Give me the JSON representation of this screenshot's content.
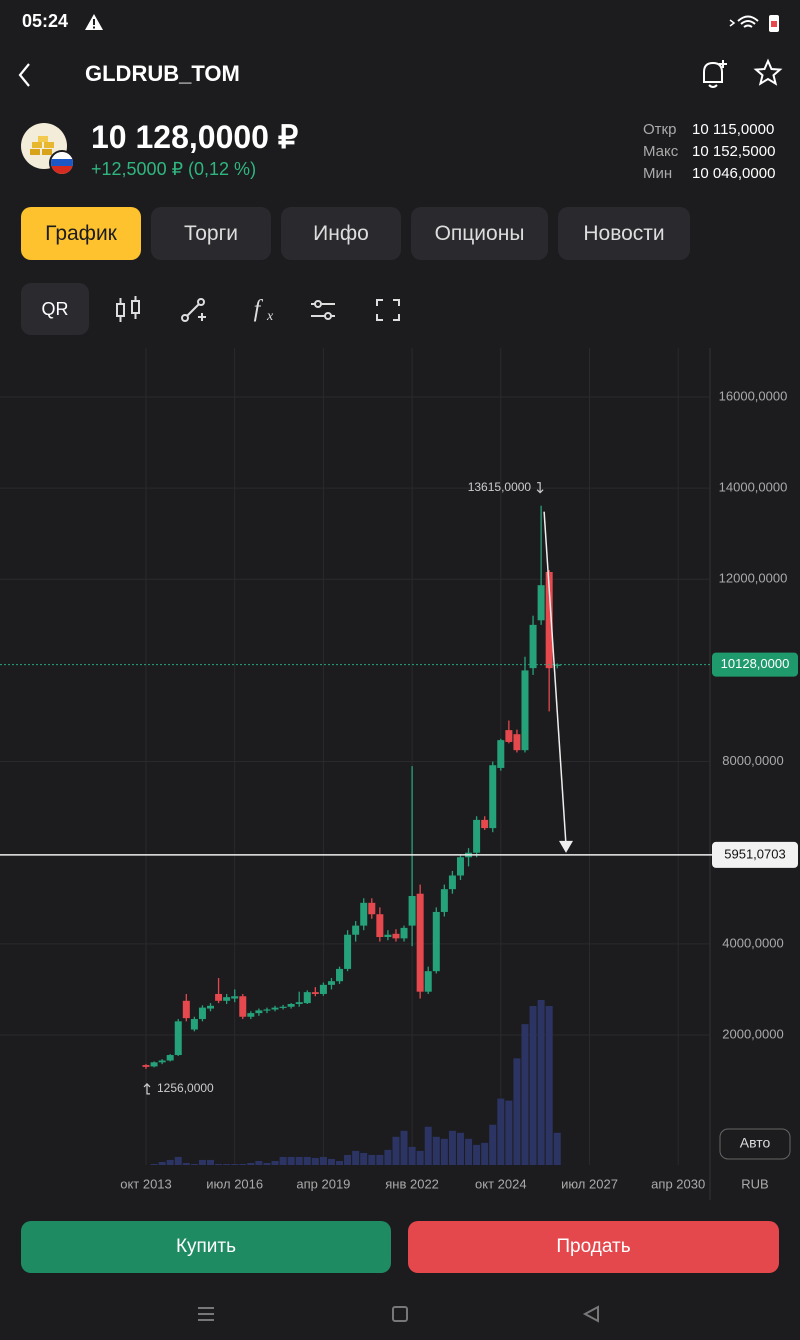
{
  "status_bar": {
    "time": "05:24"
  },
  "header": {
    "title": "GLDRUB_TOM"
  },
  "quote": {
    "price": "10 128,0000 ₽",
    "change": "+12,5000 ₽ (0,12 %)",
    "stats": [
      {
        "label": "Откр",
        "value": "10 115,0000"
      },
      {
        "label": "Макс",
        "value": "10 152,5000"
      },
      {
        "label": "Мин",
        "value": "10 046,0000"
      }
    ]
  },
  "tabs": [
    "График",
    "Торги",
    "Инфо",
    "Опционы",
    "Новости"
  ],
  "active_tab": 0,
  "toolbar": {
    "qr": "QR"
  },
  "chart": {
    "type": "candlestick",
    "ylim": [
      -853,
      17075
    ],
    "yticks": [
      {
        "value": 16000,
        "label": "16000,0000"
      },
      {
        "value": 14000,
        "label": "14000,0000"
      },
      {
        "value": 12000,
        "label": "12000,0000"
      },
      {
        "value": 8000,
        "label": "8000,0000"
      },
      {
        "value": 4000,
        "label": "4000,0000"
      },
      {
        "value": 2000,
        "label": "2000,0000"
      }
    ],
    "x_labels": [
      "окт 2013",
      "июл 2016",
      "апр 2019",
      "янв 2022",
      "окт 2024",
      "июл 2027",
      "апр 2030"
    ],
    "currency": "RUB",
    "auto_button": "Авто",
    "colors": {
      "up": "#26a27b",
      "down": "#e5484d",
      "volume": "#2c3464"
    },
    "candles": [
      {
        "open": 1340,
        "high": 1360,
        "low": 1256,
        "close": 1300
      },
      {
        "open": 1310,
        "high": 1420,
        "low": 1290,
        "close": 1400
      },
      {
        "open": 1400,
        "high": 1470,
        "low": 1360,
        "close": 1440
      },
      {
        "open": 1440,
        "high": 1580,
        "low": 1420,
        "close": 1560
      },
      {
        "open": 1560,
        "high": 2350,
        "low": 1540,
        "close": 2300
      },
      {
        "open": 2750,
        "high": 2900,
        "low": 2300,
        "close": 2370
      },
      {
        "open": 2120,
        "high": 2400,
        "low": 2080,
        "close": 2350
      },
      {
        "open": 2350,
        "high": 2650,
        "low": 2300,
        "close": 2600
      },
      {
        "open": 2580,
        "high": 2700,
        "low": 2520,
        "close": 2640
      },
      {
        "open": 2900,
        "high": 3250,
        "low": 2700,
        "close": 2750
      },
      {
        "open": 2750,
        "high": 2900,
        "low": 2680,
        "close": 2830
      },
      {
        "open": 2800,
        "high": 3000,
        "low": 2720,
        "close": 2850
      },
      {
        "open": 2850,
        "high": 2900,
        "low": 2350,
        "close": 2400
      },
      {
        "open": 2400,
        "high": 2520,
        "low": 2350,
        "close": 2480
      },
      {
        "open": 2480,
        "high": 2580,
        "low": 2420,
        "close": 2540
      },
      {
        "open": 2540,
        "high": 2600,
        "low": 2480,
        "close": 2560
      },
      {
        "open": 2560,
        "high": 2640,
        "low": 2520,
        "close": 2600
      },
      {
        "open": 2600,
        "high": 2660,
        "low": 2560,
        "close": 2620
      },
      {
        "open": 2620,
        "high": 2700,
        "low": 2580,
        "close": 2680
      },
      {
        "open": 2680,
        "high": 2950,
        "low": 2620,
        "close": 2720
      },
      {
        "open": 2700,
        "high": 2980,
        "low": 2680,
        "close": 2940
      },
      {
        "open": 2940,
        "high": 3050,
        "low": 2850,
        "close": 2900
      },
      {
        "open": 2900,
        "high": 3150,
        "low": 2860,
        "close": 3100
      },
      {
        "open": 3100,
        "high": 3250,
        "low": 3000,
        "close": 3180
      },
      {
        "open": 3180,
        "high": 3500,
        "low": 3120,
        "close": 3450
      },
      {
        "open": 3450,
        "high": 4300,
        "low": 3400,
        "close": 4200
      },
      {
        "open": 4200,
        "high": 4500,
        "low": 4050,
        "close": 4400
      },
      {
        "open": 4400,
        "high": 5000,
        "low": 4300,
        "close": 4900
      },
      {
        "open": 4900,
        "high": 5000,
        "low": 4550,
        "close": 4650
      },
      {
        "open": 4650,
        "high": 4800,
        "low": 4050,
        "close": 4150
      },
      {
        "open": 4150,
        "high": 4300,
        "low": 4080,
        "close": 4200
      },
      {
        "open": 4220,
        "high": 4320,
        "low": 4050,
        "close": 4120
      },
      {
        "open": 4120,
        "high": 4400,
        "low": 4050,
        "close": 4350
      },
      {
        "open": 4400,
        "high": 7900,
        "low": 3950,
        "close": 5050
      },
      {
        "open": 5100,
        "high": 5300,
        "low": 2800,
        "close": 2950
      },
      {
        "open": 2950,
        "high": 3500,
        "low": 2900,
        "close": 3400
      },
      {
        "open": 3400,
        "high": 4800,
        "low": 3350,
        "close": 4700
      },
      {
        "open": 4700,
        "high": 5300,
        "low": 4600,
        "close": 5200
      },
      {
        "open": 5200,
        "high": 5600,
        "low": 5100,
        "close": 5500
      },
      {
        "open": 5500,
        "high": 5950,
        "low": 5400,
        "close": 5900
      },
      {
        "open": 5900,
        "high": 6100,
        "low": 5700,
        "close": 6000
      },
      {
        "open": 6000,
        "high": 6800,
        "low": 5900,
        "close": 6720
      },
      {
        "open": 6720,
        "high": 6800,
        "low": 6500,
        "close": 6540
      },
      {
        "open": 6540,
        "high": 8000,
        "low": 6450,
        "close": 7920
      },
      {
        "open": 7860,
        "high": 8500,
        "low": 7800,
        "close": 8470
      },
      {
        "open": 8690,
        "high": 8900,
        "low": 8400,
        "close": 8430
      },
      {
        "open": 8600,
        "high": 8700,
        "low": 8200,
        "close": 8250
      },
      {
        "open": 8250,
        "high": 10300,
        "low": 8200,
        "close": 10000
      },
      {
        "open": 10050,
        "high": 11200,
        "low": 9900,
        "close": 11000
      },
      {
        "open": 11100,
        "high": 13615,
        "low": 11000,
        "close": 11870
      },
      {
        "open": 12160,
        "high": 12200,
        "low": 9100,
        "close": 10050
      },
      {
        "open": 10115,
        "high": 10152.5,
        "low": 10046,
        "close": 10128
      }
    ],
    "volumes": [
      0,
      1,
      3,
      5,
      8,
      2,
      1,
      5,
      5,
      1,
      1,
      1,
      1,
      2,
      4,
      2,
      4,
      8,
      8,
      8,
      8,
      7,
      8,
      6,
      4,
      10,
      14,
      12,
      10,
      10,
      15,
      28,
      34,
      18,
      14,
      38,
      28,
      26,
      34,
      32,
      26,
      20,
      22,
      40,
      66,
      64,
      106,
      140,
      158,
      164,
      158,
      32
    ],
    "last_price": {
      "value": 10128,
      "label": "10128,0000"
    },
    "level_line": {
      "value": 5951.0703,
      "label": "5951,0703"
    },
    "annotations": [
      {
        "value": 13615,
        "label": "13615,0000",
        "candle": 49,
        "at": "high"
      },
      {
        "value": 1256,
        "label": "1256,0000",
        "candle": 0,
        "at": "low"
      }
    ]
  },
  "actions": {
    "buy": "Купить",
    "sell": "Продать"
  }
}
